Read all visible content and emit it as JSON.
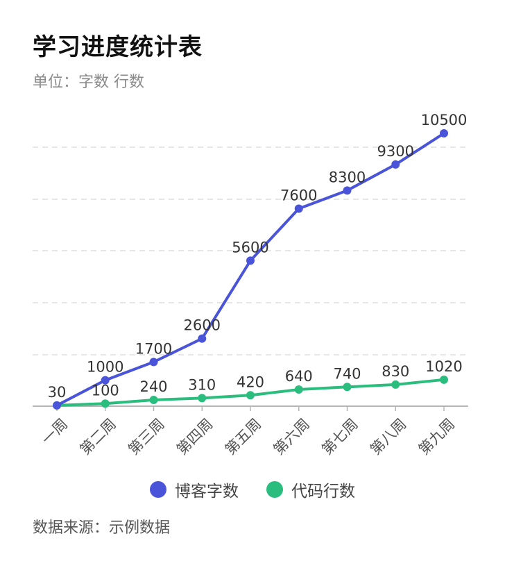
{
  "header": {
    "title": "学习进度统计表",
    "subtitle": "单位：字数 行数"
  },
  "footer": {
    "source": "数据来源：示例数据"
  },
  "chart_data": {
    "type": "line",
    "categories": [
      "一周",
      "第二周",
      "第三周",
      "第四周",
      "第五周",
      "第六周",
      "第七周",
      "第八周",
      "第九周"
    ],
    "series": [
      {
        "name": "博客字数",
        "color": "#4a54d8",
        "values": [
          30,
          1000,
          1700,
          2600,
          5600,
          7600,
          8300,
          9300,
          10500
        ]
      },
      {
        "name": "代码行数",
        "color": "#2bbd7e",
        "values": [
          30,
          100,
          240,
          310,
          420,
          640,
          740,
          830,
          1020
        ]
      }
    ],
    "data_labels_series1": [
      "30",
      "1000",
      "1700",
      "2600",
      "5600",
      "7600",
      "8300",
      "9300",
      "10500"
    ],
    "data_labels_series2": [
      "",
      "100",
      "240",
      "310",
      "420",
      "640",
      "740",
      "830",
      "1020"
    ],
    "ylim": [
      0,
      10500
    ],
    "grid": true,
    "legend": "bottom-center",
    "xlabel": "",
    "ylabel": ""
  }
}
